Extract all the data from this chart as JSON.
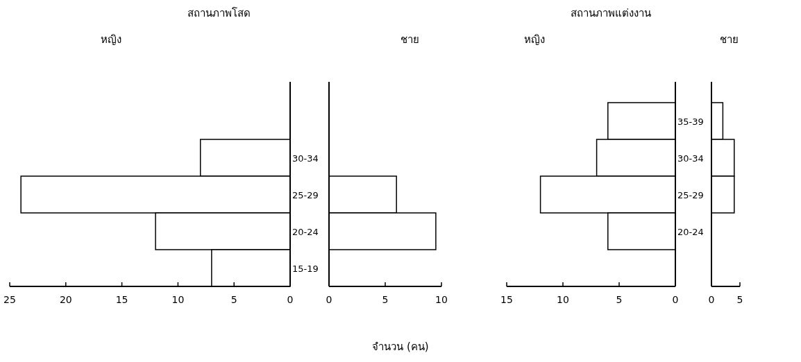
{
  "chart_data": [
    {
      "type": "bar",
      "orientation": "horizontal",
      "title": "สถานภาพโสด",
      "subtitle": "หญิง",
      "categories": [
        "30-34",
        "25-29",
        "20-24",
        "15-19"
      ],
      "series": [
        {
          "color": "#ffffff",
          "values": [
            8,
            24,
            12,
            7
          ]
        }
      ],
      "xlim": [
        25,
        0
      ],
      "xticks": [
        25,
        20,
        15,
        10,
        5,
        0
      ]
    },
    {
      "type": "bar",
      "orientation": "horizontal",
      "subtitle": "ชาย",
      "xlabel": "จำนวน (คน)",
      "categories": [
        null,
        null,
        null,
        null
      ],
      "series": [
        {
          "color": "#ffffff",
          "values": [
            0,
            6,
            9.5,
            0
          ]
        }
      ],
      "xlim": [
        0,
        10
      ],
      "xticks": [
        0,
        5,
        10
      ],
      "tick_labels": "x"
    },
    {
      "type": "bar",
      "orientation": "horizontal",
      "title": "สถานภาพแต่งงาน",
      "subtitle": "หญิง",
      "categories": [
        "35-39",
        "30-34",
        "25-29",
        "20-24",
        null
      ],
      "series": [
        {
          "color": "#ffffff",
          "values": [
            6,
            7,
            12,
            6,
            null
          ]
        }
      ],
      "xlim": [
        15,
        0
      ],
      "xticks": [
        15,
        10,
        5,
        0
      ]
    },
    {
      "type": "bar",
      "orientation": "horizontal",
      "subtitle": "ชาย",
      "categories": [
        null,
        null,
        null,
        null,
        null
      ],
      "series": [
        {
          "color": "#ffffff",
          "values": [
            2,
            4,
            4,
            0,
            null
          ]
        }
      ],
      "xlim": [
        0,
        5
      ],
      "xticks": [
        0,
        5
      ],
      "tick_labels": "x"
    }
  ]
}
